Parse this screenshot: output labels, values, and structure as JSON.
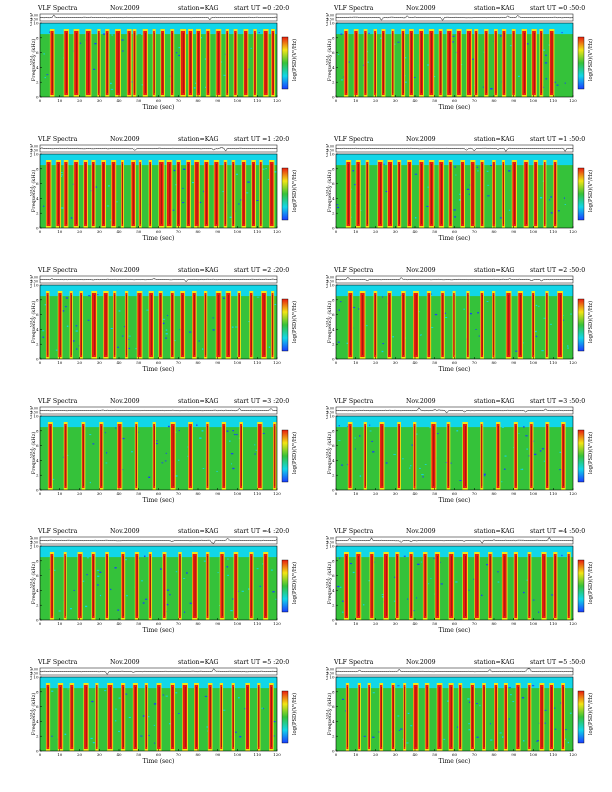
{
  "colors": {
    "cold": "#1a3cff",
    "cyan": "#11d6e8",
    "green": "#35c23a",
    "yellow": "#f2e516",
    "red": "#e81d10",
    "brown": "#7a1a0d"
  },
  "labels": {
    "ch_axis": "ch1(V)",
    "ch_ticks": [
      "0.00",
      "0.50"
    ],
    "freq_axis_top": "ch1",
    "freq_axis": "Frequency (kHz)",
    "freq_ticks": [
      "0",
      "2",
      "4",
      "6",
      "8",
      "10"
    ],
    "time_ticks": [
      "0",
      "10",
      "20",
      "30",
      "40",
      "50",
      "60",
      "70",
      "80",
      "90",
      "100",
      "110",
      "120"
    ],
    "time_axis": "Time (sec)",
    "colorbar_label": "log(PSD)(V²/Hz)"
  },
  "panels": [
    {
      "title": "VLF Spectra",
      "month": "Nov.2009",
      "station": "station=KAG",
      "start": "start  UT  =0 :20:0"
    },
    {
      "title": "VLF Spectra",
      "month": "Nov.2009",
      "station": "station=KAG",
      "start": "start  UT  =0 :50:0"
    },
    {
      "title": "VLF Spectra",
      "month": "Nov.2009",
      "station": "station=KAG",
      "start": "start  UT  =1 :20:0"
    },
    {
      "title": "VLF Spectra",
      "month": "Nov.2009",
      "station": "station=KAG",
      "start": "start  UT  =1 :50:0"
    },
    {
      "title": "VLF Spectra",
      "month": "Nov.2009",
      "station": "station=KAG",
      "start": "start  UT  =2 :20:0"
    },
    {
      "title": "VLF Spectra",
      "month": "Nov.2009",
      "station": "station=KAG",
      "start": "start  UT  =2 :50:0"
    },
    {
      "title": "VLF Spectra",
      "month": "Nov.2009",
      "station": "station=KAG",
      "start": "start  UT  =3 :20:0"
    },
    {
      "title": "VLF Spectra",
      "month": "Nov.2009",
      "station": "station=KAG",
      "start": "start  UT  =3 :50:0"
    },
    {
      "title": "VLF Spectra",
      "month": "Nov.2009",
      "station": "station=KAG",
      "start": "start  UT  =4 :20:0"
    },
    {
      "title": "VLF Spectra",
      "month": "Nov.2009",
      "station": "station=KAG",
      "start": "start  UT  =4 :50:0"
    },
    {
      "title": "VLF Spectra",
      "month": "Nov.2009",
      "station": "station=KAG",
      "start": "start  UT  =5 :20:0"
    },
    {
      "title": "VLF Spectra",
      "month": "Nov.2009",
      "station": "station=KAG",
      "start": "start  UT  =5 :50:0"
    }
  ],
  "chart_data": {
    "type": "heatmap",
    "panel_count": 12,
    "x_range": [
      0,
      120
    ],
    "y_range": [
      0,
      10
    ],
    "xlabel": "Time (sec)",
    "ylabel": "Frequency (kHz)",
    "colorbar": "log(PSD)(V²/Hz)",
    "upper_band_kHz": [
      8.5,
      10
    ],
    "bursts_sec": [
      [
        5,
        12,
        17,
        23,
        29,
        33,
        38,
        44,
        47,
        52,
        57,
        61,
        66,
        71,
        75,
        79,
        84,
        89,
        94,
        98,
        103,
        108,
        113,
        117
      ],
      [
        4,
        9,
        14,
        19,
        23,
        28,
        33,
        37,
        42,
        47,
        52,
        56,
        61,
        66,
        70,
        75,
        80,
        84,
        89,
        94,
        99,
        103,
        108
      ],
      [
        3,
        8,
        12,
        17,
        22,
        26,
        31,
        36,
        41,
        46,
        50,
        55,
        60,
        64,
        69,
        74,
        78,
        83,
        88,
        93,
        97,
        102,
        107,
        111,
        116
      ],
      [
        5,
        10,
        15,
        21,
        26,
        31,
        36,
        42,
        47,
        52,
        57,
        63,
        68,
        73,
        79,
        84,
        89,
        95,
        100,
        105,
        110
      ],
      [
        3,
        9,
        15,
        20,
        26,
        32,
        37,
        43,
        49,
        55,
        60,
        66,
        71,
        77,
        83,
        89,
        94,
        100,
        106,
        112,
        117
      ],
      [
        6,
        12,
        19,
        26,
        33,
        39,
        46,
        53,
        59,
        66,
        73,
        79,
        86,
        92,
        99,
        106,
        112
      ],
      [
        4,
        12,
        21,
        30,
        39,
        48,
        57,
        66,
        75,
        84,
        92,
        101,
        110,
        118
      ],
      [
        6,
        14,
        22,
        31,
        39,
        48,
        56,
        64,
        73,
        81,
        90,
        98,
        106,
        114
      ],
      [
        5,
        12,
        19,
        26,
        33,
        41,
        48,
        55,
        62,
        70,
        77,
        84,
        91,
        98,
        106,
        113
      ],
      [
        4,
        10,
        17,
        24,
        30,
        37,
        44,
        50,
        57,
        64,
        70,
        77,
        84,
        90,
        97,
        104,
        110,
        117
      ],
      [
        3,
        9,
        15,
        22,
        28,
        34,
        41,
        47,
        53,
        59,
        66,
        72,
        78,
        85,
        91,
        97,
        104,
        110,
        116
      ],
      [
        5,
        11,
        16,
        22,
        28,
        34,
        39,
        45,
        51,
        57,
        62,
        68,
        74,
        80,
        85,
        91,
        97,
        103,
        108,
        114
      ]
    ]
  }
}
